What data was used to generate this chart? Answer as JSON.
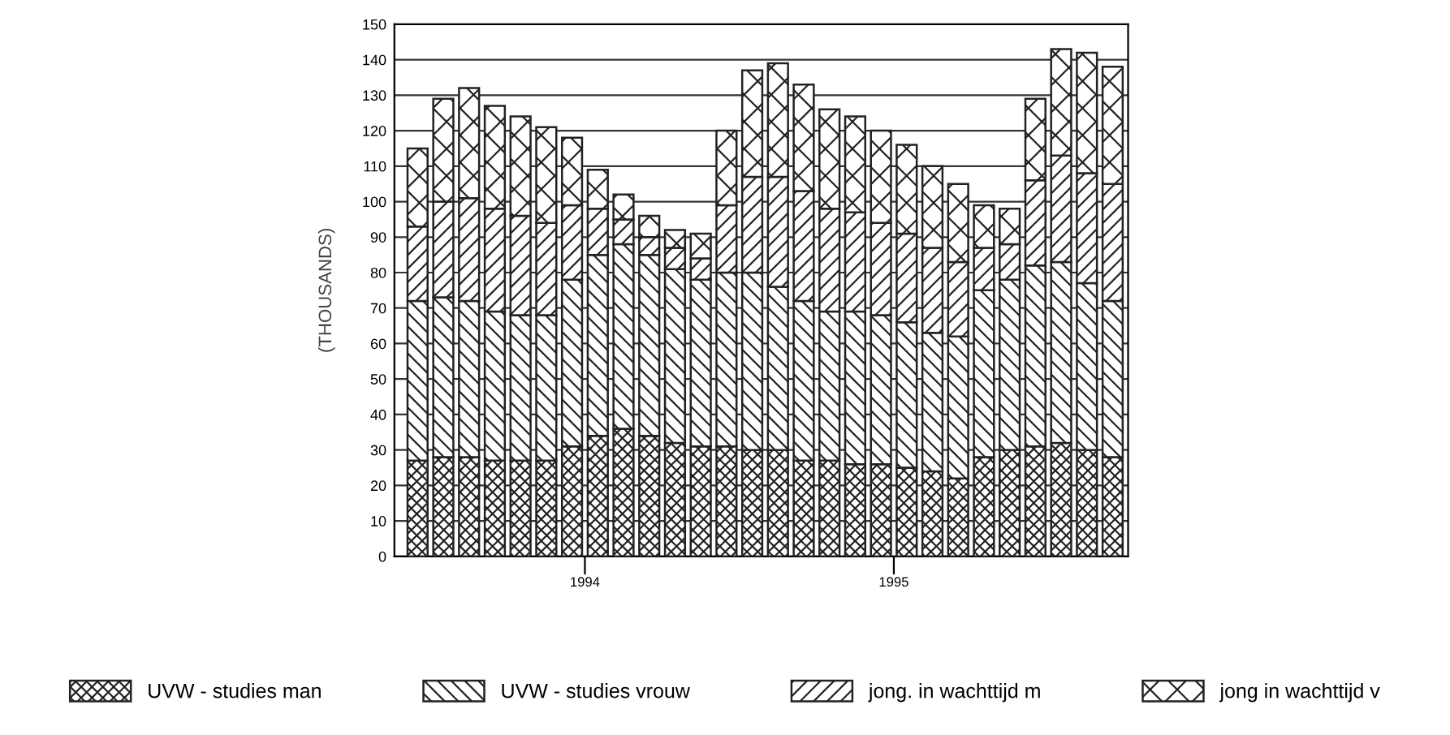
{
  "chart_data": {
    "type": "bar",
    "stacked": true,
    "ylabel": "(THOUSANDS)",
    "categories": [
      null,
      null,
      null,
      null,
      null,
      null,
      "1994",
      null,
      null,
      null,
      null,
      null,
      null,
      null,
      null,
      null,
      null,
      null,
      "1995",
      null,
      null,
      null,
      null,
      null,
      null,
      null,
      null,
      null
    ],
    "series": [
      {
        "name": "UVW - studies man",
        "color": "#222222",
        "values": [
          27,
          28,
          28,
          27,
          27,
          27,
          31,
          34,
          36,
          34,
          32,
          31,
          31,
          30,
          30,
          27,
          27,
          26,
          26,
          25,
          24,
          22,
          28,
          30,
          31,
          32,
          30,
          28
        ]
      },
      {
        "name": "UVW - studies vrouw",
        "color": "#222222",
        "values": [
          45,
          45,
          44,
          42,
          41,
          41,
          47,
          51,
          52,
          51,
          49,
          47,
          49,
          50,
          46,
          45,
          42,
          43,
          42,
          41,
          39,
          40,
          47,
          48,
          51,
          51,
          47,
          44
        ]
      },
      {
        "name": "jong. in wachttijd m",
        "color": "#222222",
        "values": [
          21,
          27,
          29,
          29,
          28,
          26,
          21,
          13,
          7,
          5,
          6,
          6,
          19,
          27,
          31,
          31,
          29,
          28,
          26,
          25,
          24,
          21,
          12,
          10,
          24,
          30,
          31,
          33
        ]
      },
      {
        "name": "jong in wachttijd v",
        "color": "#222222",
        "values": [
          22,
          29,
          31,
          29,
          28,
          27,
          19,
          11,
          7,
          6,
          5,
          7,
          21,
          30,
          32,
          30,
          28,
          27,
          26,
          25,
          23,
          22,
          12,
          10,
          23,
          30,
          34,
          33
        ]
      }
    ],
    "ylim": [
      0,
      150
    ],
    "yticks": [
      0,
      10,
      20,
      30,
      40,
      50,
      60,
      70,
      80,
      90,
      100,
      110,
      120,
      130,
      140,
      150
    ],
    "grid": "y",
    "legend": "bottom"
  }
}
